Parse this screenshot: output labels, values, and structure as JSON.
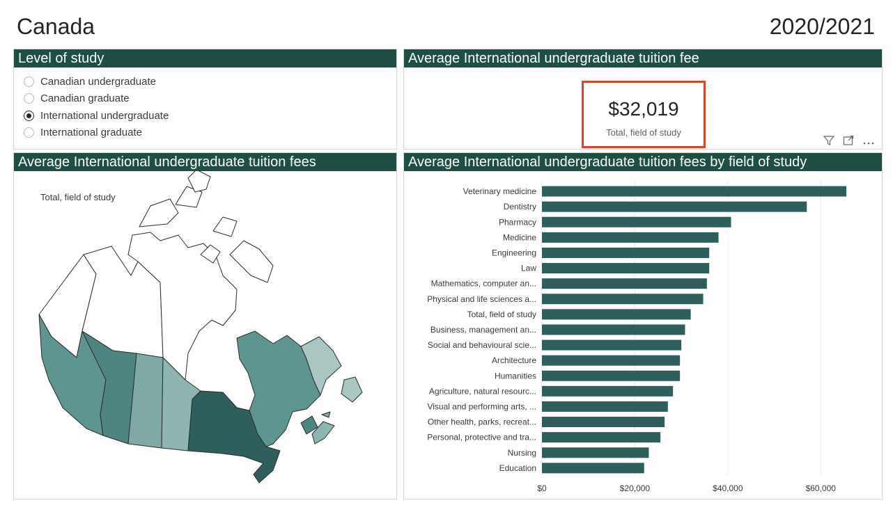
{
  "header": {
    "title": "Canada",
    "year": "2020/2021"
  },
  "slicer": {
    "title": "Level of study",
    "options": [
      {
        "label": "Canadian undergraduate",
        "selected": false
      },
      {
        "label": "Canadian graduate",
        "selected": false
      },
      {
        "label": "International undergraduate",
        "selected": true
      },
      {
        "label": "International graduate",
        "selected": false
      }
    ]
  },
  "card": {
    "title": "Average International undergraduate tuition fee",
    "value": "$32,019",
    "label": "Total, field of study",
    "icons": [
      "filter-icon",
      "focus-mode-icon",
      "more-options-icon"
    ]
  },
  "map": {
    "title": "Average International undergraduate tuition fees",
    "legend_label": "Total, field of study"
  },
  "colors": {
    "header_bg": "#1f4e45",
    "bar": "#2f5f5c",
    "kpi_border": "#d9472b"
  },
  "chart_data": {
    "type": "bar",
    "orientation": "horizontal",
    "title": "Average International undergraduate tuition fees by field of study",
    "categories": [
      "Veterinary medicine",
      "Dentistry",
      "Pharmacy",
      "Medicine",
      "Engineering",
      "Law",
      "Mathematics, computer an...",
      "Physical and life sciences a...",
      "Total, field of study",
      "Business, management an...",
      "Social and behavioural scie...",
      "Architecture",
      "Humanities",
      "Agriculture, natural resourc...",
      "Visual and performing arts, ...",
      "Other health, parks, recreat...",
      "Personal, protective and tra...",
      "Nursing",
      "Education"
    ],
    "values": [
      65500,
      57000,
      40700,
      38000,
      36000,
      36000,
      35500,
      34700,
      32019,
      30800,
      30000,
      29700,
      29700,
      28200,
      27100,
      26400,
      25500,
      23000,
      22000
    ],
    "xlim": [
      0,
      70000
    ],
    "x_ticks": [
      {
        "value": 0,
        "label": "$0"
      },
      {
        "value": 20000,
        "label": "$20,000"
      },
      {
        "value": 40000,
        "label": "$40,000"
      },
      {
        "value": 60000,
        "label": "$60,000"
      }
    ],
    "grid": true
  }
}
